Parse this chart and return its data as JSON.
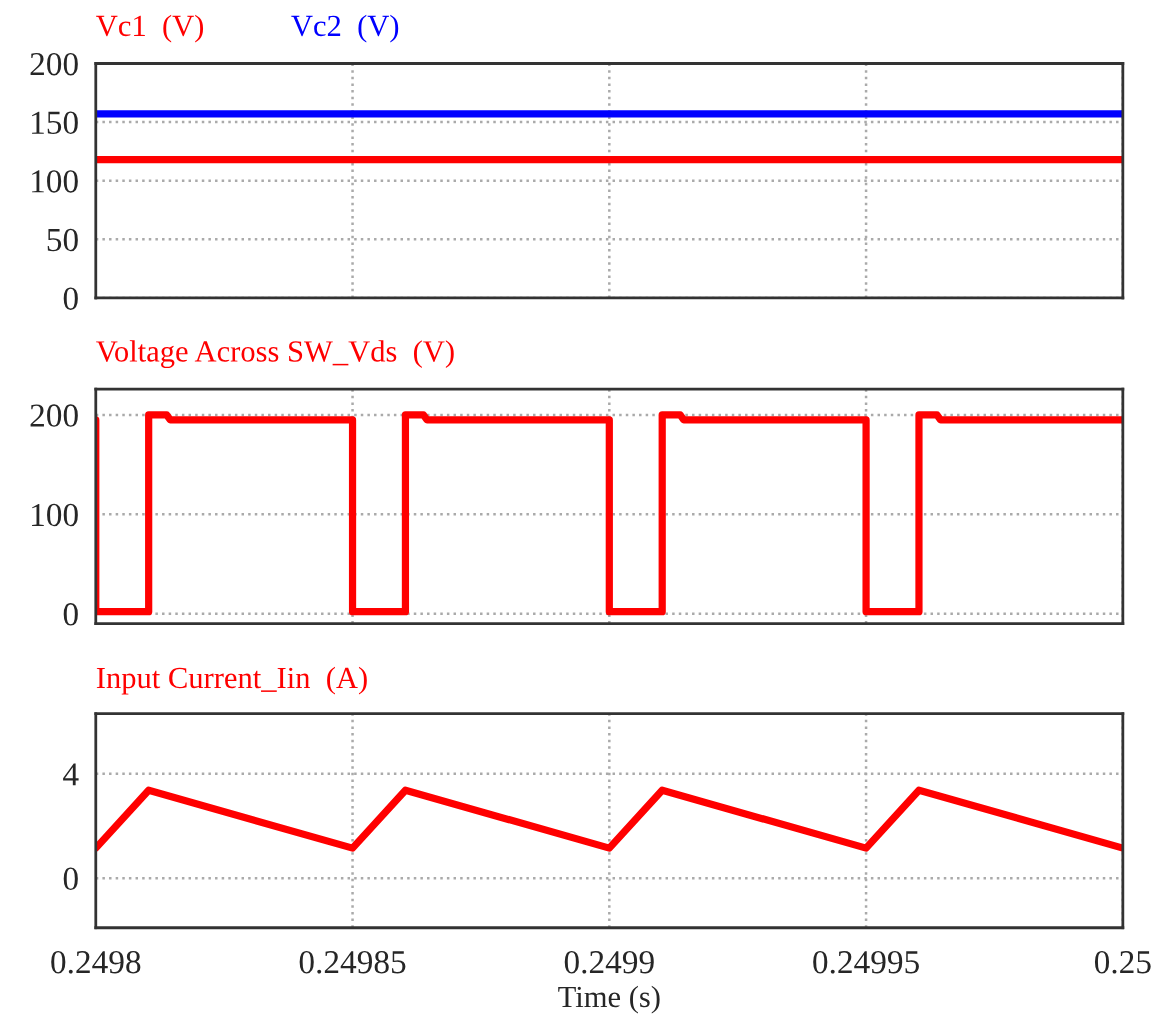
{
  "chart_data": [
    {
      "type": "line",
      "x": [
        0.2498,
        0.25
      ],
      "xlim": [
        0.2498,
        0.25
      ],
      "xticks": [
        0.2498,
        0.24985,
        0.2499,
        0.24995,
        0.25
      ],
      "ylim": [
        0,
        200
      ],
      "yticks": [
        0,
        50,
        100,
        150,
        200
      ],
      "grid": true,
      "tick_labels": "y",
      "line_style": "solid",
      "series": [
        {
          "name": "Vc1  (V)",
          "color": "#ff0000",
          "values": [
            118,
            118
          ]
        },
        {
          "name": "Vc2  (V)",
          "color": "#0000ff",
          "values": [
            157,
            157
          ]
        }
      ]
    },
    {
      "type": "line",
      "xlim": [
        0.2498,
        0.25
      ],
      "xticks": [
        0.2498,
        0.24985,
        0.2499,
        0.24995,
        0.25
      ],
      "ylim": [
        -10,
        226
      ],
      "yticks": [
        0,
        100,
        200
      ],
      "grid": true,
      "tick_labels": "y",
      "line_style": "solid",
      "series": [
        {
          "name": "Voltage Across SW_Vds  (V)",
          "color": "#ff0000",
          "x": [
            0.2498,
            0.2498,
            0.2498103,
            0.2498103,
            0.2498138,
            0.2498145,
            0.24985,
            0.24985,
            0.2498603,
            0.2498603,
            0.2498638,
            0.2498645,
            0.2499,
            0.2499,
            0.2499103,
            0.2499103,
            0.2499138,
            0.2499145,
            0.24995,
            0.24995,
            0.2499603,
            0.2499603,
            0.2499638,
            0.2499645,
            0.25
          ],
          "values": [
            195,
            2,
            2,
            200,
            200,
            195,
            195,
            2,
            2,
            200,
            200,
            195,
            195,
            2,
            2,
            200,
            200,
            195,
            195,
            2,
            2,
            200,
            200,
            195,
            195
          ]
        }
      ]
    },
    {
      "type": "line",
      "xlabel": "Time (s)",
      "xlim": [
        0.2498,
        0.25
      ],
      "xticks": [
        0.2498,
        0.24985,
        0.2499,
        0.24995,
        0.25
      ],
      "ylim": [
        -1.9,
        6.3
      ],
      "yticks": [
        0,
        4
      ],
      "grid": true,
      "line_style": "solid",
      "series": [
        {
          "name": "Input Current_Iin  (A)",
          "color": "#ff0000",
          "x": [
            0.2498,
            0.2498103,
            0.24985,
            0.2498603,
            0.2499,
            0.2499103,
            0.24995,
            0.2499603,
            0.25
          ],
          "values": [
            1.15,
            3.37,
            1.15,
            3.37,
            1.15,
            3.37,
            1.15,
            3.37,
            1.15
          ]
        }
      ]
    }
  ]
}
